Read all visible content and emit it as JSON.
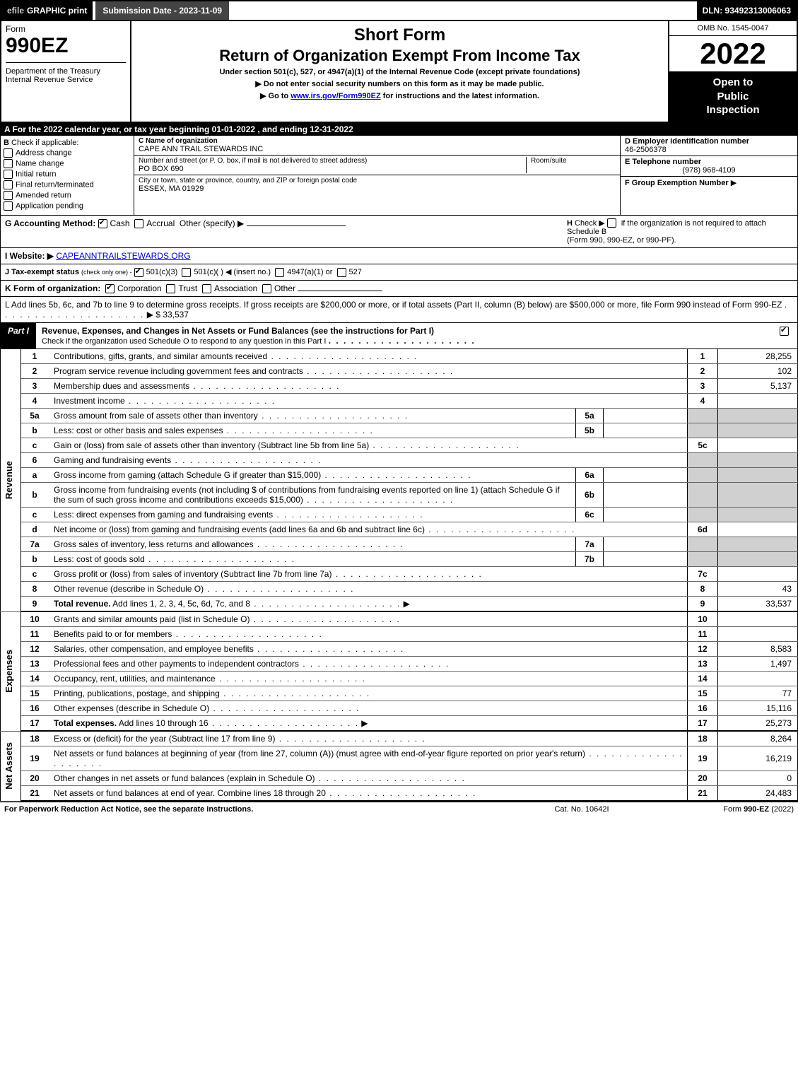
{
  "topbar": {
    "efile_prefix": "efile",
    "efile_text": "GRAPHIC print",
    "submission": "Submission Date - 2023-11-09",
    "dln": "DLN: 93492313006063"
  },
  "header": {
    "form_label": "Form",
    "form_number": "990EZ",
    "dept1": "Department of the Treasury",
    "dept2": "Internal Revenue Service",
    "title1": "Short Form",
    "title2": "Return of Organization Exempt From Income Tax",
    "sub1": "Under section 501(c), 527, or 4947(a)(1) of the Internal Revenue Code (except private foundations)",
    "sub2": "▶ Do not enter social security numbers on this form as it may be made public.",
    "sub3_pre": "▶ Go to ",
    "sub3_link": "www.irs.gov/Form990EZ",
    "sub3_post": " for instructions and the latest information.",
    "omb": "OMB No. 1545-0047",
    "year": "2022",
    "inspection1": "Open to",
    "inspection2": "Public",
    "inspection3": "Inspection"
  },
  "row_a": "A  For the 2022 calendar year, or tax year beginning 01-01-2022 , and ending 12-31-2022",
  "section_b": {
    "title": "B",
    "check_label": "Check if applicable:",
    "items": [
      "Address change",
      "Name change",
      "Initial return",
      "Final return/terminated",
      "Amended return",
      "Application pending"
    ]
  },
  "section_c": {
    "name_label": "C Name of organization",
    "name": "CAPE ANN TRAIL STEWARDS INC",
    "street_label": "Number and street (or P. O. box, if mail is not delivered to street address)",
    "room_label": "Room/suite",
    "street": "PO BOX 690",
    "city_label": "City or town, state or province, country, and ZIP or foreign postal code",
    "city": "ESSEX, MA  01929"
  },
  "section_d": {
    "ein_label": "D Employer identification number",
    "ein": "46-2506378",
    "phone_label": "E Telephone number",
    "phone": "(978) 968-4109",
    "group_label": "F Group Exemption Number",
    "group_arrow": "▶"
  },
  "row_g": {
    "label": "G Accounting Method:",
    "cash": "Cash",
    "accrual": "Accrual",
    "other": "Other (specify) ▶"
  },
  "row_h": {
    "label": "H",
    "text1": "Check ▶",
    "text2": "if the organization is not required to attach Schedule B",
    "text3": "(Form 990, 990-EZ, or 990-PF)."
  },
  "row_i": {
    "label": "I Website: ▶",
    "value": "CAPEANNTRAILSTEWARDS.ORG"
  },
  "row_j": {
    "label": "J Tax-exempt status",
    "sub": "(check only one) -",
    "opt1": "501(c)(3)",
    "opt2": "501(c)(  ) ◀ (insert no.)",
    "opt3": "4947(a)(1) or",
    "opt4": "527"
  },
  "row_k": {
    "label": "K Form of organization:",
    "opt1": "Corporation",
    "opt2": "Trust",
    "opt3": "Association",
    "opt4": "Other"
  },
  "row_l": {
    "text": "L Add lines 5b, 6c, and 7b to line 9 to determine gross receipts. If gross receipts are $200,000 or more, or if total assets (Part II, column (B) below) are $500,000 or more, file Form 990 instead of Form 990-EZ",
    "amount": "▶ $ 33,537"
  },
  "part1": {
    "label": "Part I",
    "title": "Revenue, Expenses, and Changes in Net Assets or Fund Balances (see the instructions for Part I)",
    "subtitle": "Check if the organization used Schedule O to respond to any question in this Part I"
  },
  "vlabels": {
    "revenue": "Revenue",
    "expenses": "Expenses",
    "netassets": "Net Assets"
  },
  "lines": [
    {
      "n": "1",
      "desc": "Contributions, gifts, grants, and similar amounts received",
      "rn": "1",
      "rv": "28,255"
    },
    {
      "n": "2",
      "desc": "Program service revenue including government fees and contracts",
      "rn": "2",
      "rv": "102"
    },
    {
      "n": "3",
      "desc": "Membership dues and assessments",
      "rn": "3",
      "rv": "5,137"
    },
    {
      "n": "4",
      "desc": "Investment income",
      "rn": "4",
      "rv": ""
    },
    {
      "n": "5a",
      "desc": "Gross amount from sale of assets other than inventory",
      "sn": "5a",
      "gray": true
    },
    {
      "n": "b",
      "desc": "Less: cost or other basis and sales expenses",
      "sn": "5b",
      "gray": true
    },
    {
      "n": "c",
      "desc": "Gain or (loss) from sale of assets other than inventory (Subtract line 5b from line 5a)",
      "rn": "5c",
      "rv": ""
    },
    {
      "n": "6",
      "desc": "Gaming and fundraising events",
      "gray": true,
      "noline": true
    },
    {
      "n": "a",
      "desc": "Gross income from gaming (attach Schedule G if greater than $15,000)",
      "sn": "6a",
      "gray": true
    },
    {
      "n": "b",
      "desc": "Gross income from fundraising events (not including $                       of contributions from fundraising events reported on line 1) (attach Schedule G if the sum of such gross income and contributions exceeds $15,000)",
      "sn": "6b",
      "gray": true
    },
    {
      "n": "c",
      "desc": "Less: direct expenses from gaming and fundraising events",
      "sn": "6c",
      "gray": true
    },
    {
      "n": "d",
      "desc": "Net income or (loss) from gaming and fundraising events (add lines 6a and 6b and subtract line 6c)",
      "rn": "6d",
      "rv": ""
    },
    {
      "n": "7a",
      "desc": "Gross sales of inventory, less returns and allowances",
      "sn": "7a",
      "gray": true
    },
    {
      "n": "b",
      "desc": "Less: cost of goods sold",
      "sn": "7b",
      "gray": true
    },
    {
      "n": "c",
      "desc": "Gross profit or (loss) from sales of inventory (Subtract line 7b from line 7a)",
      "rn": "7c",
      "rv": ""
    },
    {
      "n": "8",
      "desc": "Other revenue (describe in Schedule O)",
      "rn": "8",
      "rv": "43"
    },
    {
      "n": "9",
      "desc": "Total revenue. Add lines 1, 2, 3, 4, 5c, 6d, 7c, and 8",
      "rn": "9",
      "rv": "33,537",
      "bold": true,
      "arrow": true,
      "sep": true
    }
  ],
  "expense_lines": [
    {
      "n": "10",
      "desc": "Grants and similar amounts paid (list in Schedule O)",
      "rn": "10",
      "rv": ""
    },
    {
      "n": "11",
      "desc": "Benefits paid to or for members",
      "rn": "11",
      "rv": ""
    },
    {
      "n": "12",
      "desc": "Salaries, other compensation, and employee benefits",
      "rn": "12",
      "rv": "8,583"
    },
    {
      "n": "13",
      "desc": "Professional fees and other payments to independent contractors",
      "rn": "13",
      "rv": "1,497"
    },
    {
      "n": "14",
      "desc": "Occupancy, rent, utilities, and maintenance",
      "rn": "14",
      "rv": ""
    },
    {
      "n": "15",
      "desc": "Printing, publications, postage, and shipping",
      "rn": "15",
      "rv": "77"
    },
    {
      "n": "16",
      "desc": "Other expenses (describe in Schedule O)",
      "rn": "16",
      "rv": "15,116"
    },
    {
      "n": "17",
      "desc": "Total expenses. Add lines 10 through 16",
      "rn": "17",
      "rv": "25,273",
      "bold": true,
      "arrow": true,
      "sep": true
    }
  ],
  "netasset_lines": [
    {
      "n": "18",
      "desc": "Excess or (deficit) for the year (Subtract line 17 from line 9)",
      "rn": "18",
      "rv": "8,264"
    },
    {
      "n": "19",
      "desc": "Net assets or fund balances at beginning of year (from line 27, column (A)) (must agree with end-of-year figure reported on prior year's return)",
      "rn": "19",
      "rv": "16,219"
    },
    {
      "n": "20",
      "desc": "Other changes in net assets or fund balances (explain in Schedule O)",
      "rn": "20",
      "rv": "0"
    },
    {
      "n": "21",
      "desc": "Net assets or fund balances at end of year. Combine lines 18 through 20",
      "rn": "21",
      "rv": "24,483",
      "sep": true
    }
  ],
  "footer": {
    "left": "For Paperwork Reduction Act Notice, see the separate instructions.",
    "center": "Cat. No. 10642I",
    "right_pre": "Form ",
    "right_bold": "990-EZ",
    "right_post": " (2022)"
  }
}
